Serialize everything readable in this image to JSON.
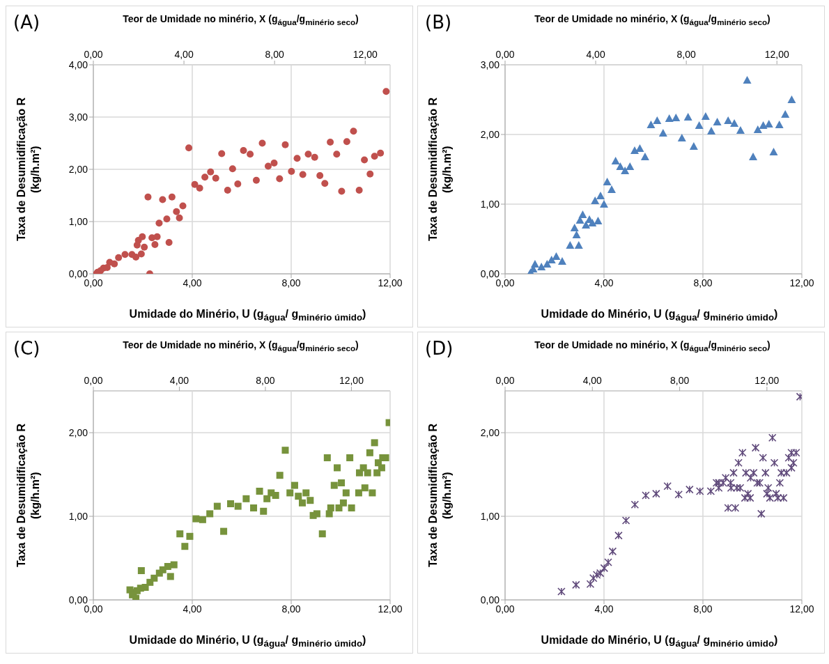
{
  "chart_data": [
    {
      "type": "scatter",
      "annotations": [
        "(A)"
      ],
      "xlabel": "Umidade do Minério, U (g$_{água}$/ g$_{minério úmido}$)",
      "x2label": "Teor de Umidade no minério, X (g$_{água}$/g$_{minério seco}$)",
      "ylabel": "Taxa de Desumidificação R (kg/h.m²)",
      "color": "#c0504d",
      "marker": "circle",
      "grid": true,
      "xlim": [
        0,
        12
      ],
      "xticks": [
        {
          "value": 0,
          "label": "0,00"
        },
        {
          "value": 4,
          "label": "4,00"
        },
        {
          "value": 8,
          "label": "8,00"
        },
        {
          "value": 12,
          "label": "12,00"
        }
      ],
      "x2lim": [
        0,
        13.1
      ],
      "x2ticks": [
        {
          "value": 0,
          "label": "0,00"
        },
        {
          "value": 4,
          "label": "4,00"
        },
        {
          "value": 8,
          "label": "8,00"
        },
        {
          "value": 12,
          "label": "12,00"
        }
      ],
      "ylim": [
        0,
        4
      ],
      "yticks": [
        {
          "value": 0,
          "label": "0,00"
        },
        {
          "value": 1,
          "label": "1,00"
        },
        {
          "value": 2,
          "label": "2,00"
        },
        {
          "value": 3,
          "label": "3,00"
        },
        {
          "value": 4,
          "label": "4,00"
        }
      ],
      "x": [
        11.84,
        3.86,
        5.19,
        6.07,
        6.34,
        6.83,
        7.76,
        7.07,
        7.31,
        5.63,
        4.74,
        4.51,
        4.95,
        4.1,
        4.3,
        5.43,
        5.84,
        6.59,
        7.53,
        8.01,
        8.24,
        8.47,
        8.69,
        8.95,
        9.16,
        9.36,
        9.58,
        9.84,
        10.04,
        10.25,
        10.52,
        10.75,
        10.96,
        11.19,
        11.37,
        11.61,
        2.21,
        2.8,
        3.18,
        3.62,
        3.36,
        3.48,
        2.97,
        2.66,
        1.98,
        1.82,
        1.77,
        2.06,
        2.37,
        2.58,
        2.49,
        3.06,
        1.94,
        1.72,
        1.56,
        1.28,
        1.02,
        0.85,
        0.66,
        0.56,
        0.41,
        0.29,
        0.17,
        0.12,
        2.28
      ],
      "values": [
        3.49,
        2.41,
        2.3,
        2.36,
        2.29,
        2.5,
        2.47,
        2.06,
        2.12,
        2.01,
        1.95,
        1.85,
        1.83,
        1.71,
        1.64,
        1.6,
        1.72,
        1.79,
        1.82,
        1.96,
        2.21,
        1.9,
        2.29,
        2.23,
        1.88,
        1.73,
        2.52,
        2.29,
        1.58,
        2.53,
        2.73,
        1.6,
        2.18,
        1.91,
        2.25,
        2.31,
        1.47,
        1.42,
        1.47,
        1.3,
        1.19,
        1.07,
        1.05,
        0.97,
        0.71,
        0.64,
        0.55,
        0.51,
        0.69,
        0.71,
        0.56,
        0.6,
        0.38,
        0.32,
        0.37,
        0.37,
        0.31,
        0.19,
        0.22,
        0.12,
        0.11,
        0.06,
        0.03,
        0,
        0
      ]
    },
    {
      "type": "scatter",
      "annotations": [
        "(B)"
      ],
      "xlabel": "Umidade do Minério, U (g$_{água}$/ g$_{minério úmido}$)",
      "x2label": "Teor de Umidade no minério, X (g$_{água}$/g$_{minério seco}$)",
      "ylabel": "Taxa de Desumidificação R (kg/h.m²)",
      "color": "#4f81bd",
      "marker": "triangle",
      "grid": true,
      "xlim": [
        0,
        12
      ],
      "xticks": [
        {
          "value": 0,
          "label": "0,00"
        },
        {
          "value": 4,
          "label": "4,00"
        },
        {
          "value": 8,
          "label": "8,00"
        },
        {
          "value": 12,
          "label": "12,00"
        }
      ],
      "x2lim": [
        0,
        13.1
      ],
      "x2ticks": [
        {
          "value": 0,
          "label": "0,00"
        },
        {
          "value": 4,
          "label": "4,00"
        },
        {
          "value": 8,
          "label": "8,00"
        },
        {
          "value": 12,
          "label": "12,00"
        }
      ],
      "ylim": [
        0,
        3
      ],
      "yticks": [
        {
          "value": 0,
          "label": "0,00"
        },
        {
          "value": 1,
          "label": "1,00"
        },
        {
          "value": 2,
          "label": "2,00"
        },
        {
          "value": 3,
          "label": "3,00"
        }
      ],
      "x": [
        9.79,
        11.59,
        11.33,
        11.09,
        10.67,
        10.44,
        10.22,
        10.03,
        10.86,
        9.52,
        9.27,
        9.02,
        8.58,
        8.34,
        8.11,
        7.85,
        7.63,
        7.4,
        7.15,
        6.91,
        6.64,
        6.39,
        6.15,
        5.9,
        5.66,
        5.45,
        5.24,
        5.05,
        4.85,
        4.66,
        4.47,
        4.31,
        4.13,
        4.0,
        3.86,
        3.64,
        3.76,
        3.53,
        3.41,
        3.27,
        3.14,
        3.03,
        2.89,
        2.81,
        2.98,
        2.63,
        2.31,
        2.07,
        1.88,
        1.7,
        1.47,
        1.21,
        1.14,
        1.04,
        1.0
      ],
      "values": [
        2.78,
        2.5,
        2.29,
        2.14,
        2.15,
        2.13,
        2.07,
        1.68,
        1.75,
        2.06,
        2.16,
        2.2,
        2.18,
        2.05,
        2.26,
        2.13,
        1.83,
        2.25,
        1.95,
        2.24,
        2.23,
        2.02,
        2.2,
        2.14,
        1.68,
        1.8,
        1.77,
        1.54,
        1.48,
        1.54,
        1.62,
        1.21,
        1.32,
        1.0,
        1.12,
        1.05,
        0.76,
        0.73,
        0.78,
        0.7,
        0.85,
        0.77,
        0.56,
        0.66,
        0.41,
        0.41,
        0.18,
        0.25,
        0.2,
        0.14,
        0.1,
        0.14,
        0.07,
        0.02,
        0
      ]
    },
    {
      "type": "scatter",
      "annotations": [
        "(C)"
      ],
      "xlabel": "Umidade do Minério, U (g$_{água}$/ g$_{minério úmido}$)",
      "x2label": "Teor de Umidade no minério, X (g$_{água}$/g$_{minério seco}$)",
      "ylabel": "Taxa de Desumidificação R (kg/h.m²)",
      "color": "#77933c",
      "marker": "square",
      "grid": true,
      "xlim": [
        0,
        12
      ],
      "xticks": [
        {
          "value": 0,
          "label": "0,00"
        },
        {
          "value": 4,
          "label": "4,00"
        },
        {
          "value": 8,
          "label": "8,00"
        },
        {
          "value": 12,
          "label": "12,00"
        }
      ],
      "x2lim": [
        0,
        13.8
      ],
      "x2ticks": [
        {
          "value": 0,
          "label": "0,00"
        },
        {
          "value": 4,
          "label": "4,00"
        },
        {
          "value": 8,
          "label": "8,00"
        },
        {
          "value": 12,
          "label": "12,00"
        }
      ],
      "ylim": [
        0,
        2.5
      ],
      "yticks": [
        {
          "value": 0,
          "label": "0,00"
        },
        {
          "value": 1,
          "label": "1,00"
        },
        {
          "value": 2,
          "label": "2,00"
        }
      ],
      "x": [
        11.96,
        11.37,
        11.18,
        11.82,
        11.7,
        11.52,
        11.66,
        11.47,
        11.09,
        10.92,
        10.76,
        10.98,
        11.28,
        10.73,
        10.37,
        10.22,
        10.44,
        10.11,
        9.93,
        10.03,
        9.74,
        9.86,
        9.46,
        9.6,
        9.54,
        9.26,
        9.04,
        8.89,
        8.77,
        8.6,
        8.45,
        8.29,
        8.14,
        7.95,
        7.76,
        7.54,
        7.37,
        7.19,
        7.02,
        6.72,
        6.88,
        6.48,
        6.18,
        5.85,
        5.55,
        5.27,
        5.01,
        4.71,
        4.42,
        4.15,
        3.9,
        3.5,
        3.7,
        3.26,
        3.01,
        3.12,
        2.81,
        2.67,
        2.46,
        2.29,
        1.94,
        2.1,
        1.91,
        1.77,
        1.62,
        1.48,
        1.72,
        1.58
      ],
      "values": [
        2.12,
        1.88,
        1.76,
        1.7,
        1.7,
        1.64,
        1.58,
        1.52,
        1.52,
        1.58,
        1.52,
        1.34,
        1.28,
        1.28,
        1.7,
        1.28,
        1.1,
        1.16,
        1.1,
        1.4,
        1.37,
        1.58,
        1.7,
        1.1,
        1.03,
        0.79,
        1.03,
        1.01,
        1.19,
        1.28,
        1.16,
        1.24,
        1.37,
        1.28,
        1.79,
        1.49,
        1.25,
        1.28,
        1.21,
        1.3,
        1.06,
        1.1,
        1.21,
        1.12,
        1.15,
        0.82,
        1.12,
        1.03,
        0.96,
        0.97,
        0.76,
        0.79,
        0.64,
        0.42,
        0.4,
        0.28,
        0.36,
        0.32,
        0.26,
        0.21,
        0.35,
        0.15,
        0.14,
        0.11,
        0.09,
        0.12,
        0.02,
        0.06
      ]
    },
    {
      "type": "scatter",
      "annotations": [
        "(D)"
      ],
      "xlabel": "Umidade do Minério, U (g$_{água}$/ g$_{minério úmido}$)",
      "x2label": "Teor de Umidade no minério, X (g$_{água}$/g$_{minério seco}$)",
      "ylabel": "Taxa de Desumidificação R (kg/h.m²)",
      "color": "#604a7b",
      "marker": "cross",
      "grid": true,
      "xlim": [
        0,
        12
      ],
      "xticks": [
        {
          "value": 0,
          "label": "0,00"
        },
        {
          "value": 4,
          "label": "4,00"
        },
        {
          "value": 8,
          "label": "8,00"
        },
        {
          "value": 12,
          "label": "12,00"
        }
      ],
      "x2lim": [
        0,
        13.6
      ],
      "x2ticks": [
        {
          "value": 0,
          "label": "0,00"
        },
        {
          "value": 4,
          "label": "4,00"
        },
        {
          "value": 8,
          "label": "8,00"
        },
        {
          "value": 12,
          "label": "12,00"
        }
      ],
      "ylim": [
        0,
        2.5
      ],
      "yticks": [
        {
          "value": 0,
          "label": "0,00"
        },
        {
          "value": 1,
          "label": "1,00"
        },
        {
          "value": 2,
          "label": "2,00"
        }
      ],
      "x": [
        11.93,
        10.81,
        10.13,
        9.6,
        10.43,
        9.44,
        10.89,
        11.77,
        11.58,
        11.47,
        11.66,
        11.58,
        11.38,
        11.17,
        11.11,
        10.53,
        10.05,
        9.93,
        9.74,
        9.24,
        8.92,
        9.12,
        8.82,
        8.64,
        8.55,
        8.64,
        9.14,
        9.37,
        9.51,
        10.2,
        10.29,
        10.64,
        10.96,
        10.59,
        9.82,
        9.7,
        9.91,
        10.71,
        11.03,
        11.26,
        9.02,
        9.31,
        10.36,
        8.32,
        7.88,
        7.46,
        7.02,
        6.57,
        6.11,
        5.69,
        5.25,
        4.89,
        4.59,
        4.35,
        4.17,
        4.01,
        3.85,
        3.71,
        3.57,
        3.45,
        2.87,
        2.28
      ],
      "values": [
        2.43,
        1.94,
        1.82,
        1.76,
        1.7,
        1.64,
        1.64,
        1.76,
        1.76,
        1.7,
        1.64,
        1.58,
        1.52,
        1.52,
        1.4,
        1.52,
        1.52,
        1.46,
        1.52,
        1.52,
        1.46,
        1.4,
        1.4,
        1.4,
        1.4,
        1.34,
        1.34,
        1.34,
        1.34,
        1.4,
        1.4,
        1.34,
        1.27,
        1.27,
        1.27,
        1.22,
        1.22,
        1.22,
        1.22,
        1.22,
        1.1,
        1.1,
        1.03,
        1.3,
        1.3,
        1.32,
        1.26,
        1.36,
        1.27,
        1.25,
        1.14,
        0.95,
        0.77,
        0.58,
        0.45,
        0.38,
        0.32,
        0.3,
        0.26,
        0.19,
        0.18,
        0.1
      ]
    }
  ]
}
